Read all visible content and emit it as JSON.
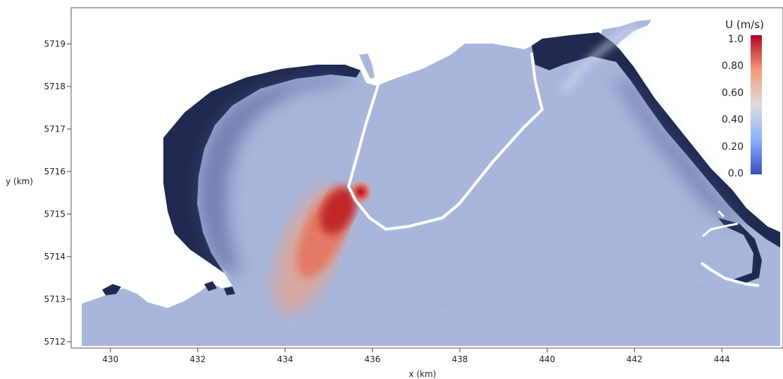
{
  "chart_data": {
    "type": "heatmap",
    "title": "",
    "xlabel": "x (km)",
    "ylabel": "y (km)",
    "xlim": [
      429.1,
      445.4
    ],
    "ylim": [
      5711.85,
      5719.85
    ],
    "x_ticks": [
      "430",
      "432",
      "434",
      "436",
      "438",
      "440",
      "442",
      "444"
    ],
    "y_ticks": [
      "5712",
      "5713",
      "5714",
      "5715",
      "5716",
      "5717",
      "5718",
      "5719"
    ],
    "colorbar": {
      "title": "U (m/s)",
      "range": [
        0.0,
        1.0
      ],
      "ticks": [
        "1.0",
        "0.80",
        "0.60",
        "0.40",
        "0.20",
        "0.0"
      ],
      "colormap": [
        "#3b4cc0",
        "#8db0fe",
        "#dddcdc",
        "#f49a7b",
        "#b40426"
      ]
    },
    "land_color": "#20294f",
    "max_speed_region": {
      "x": 434.8,
      "y": 5715.0,
      "value": 1.0
    },
    "jet_direction": "south-west from the harbour mouth"
  }
}
